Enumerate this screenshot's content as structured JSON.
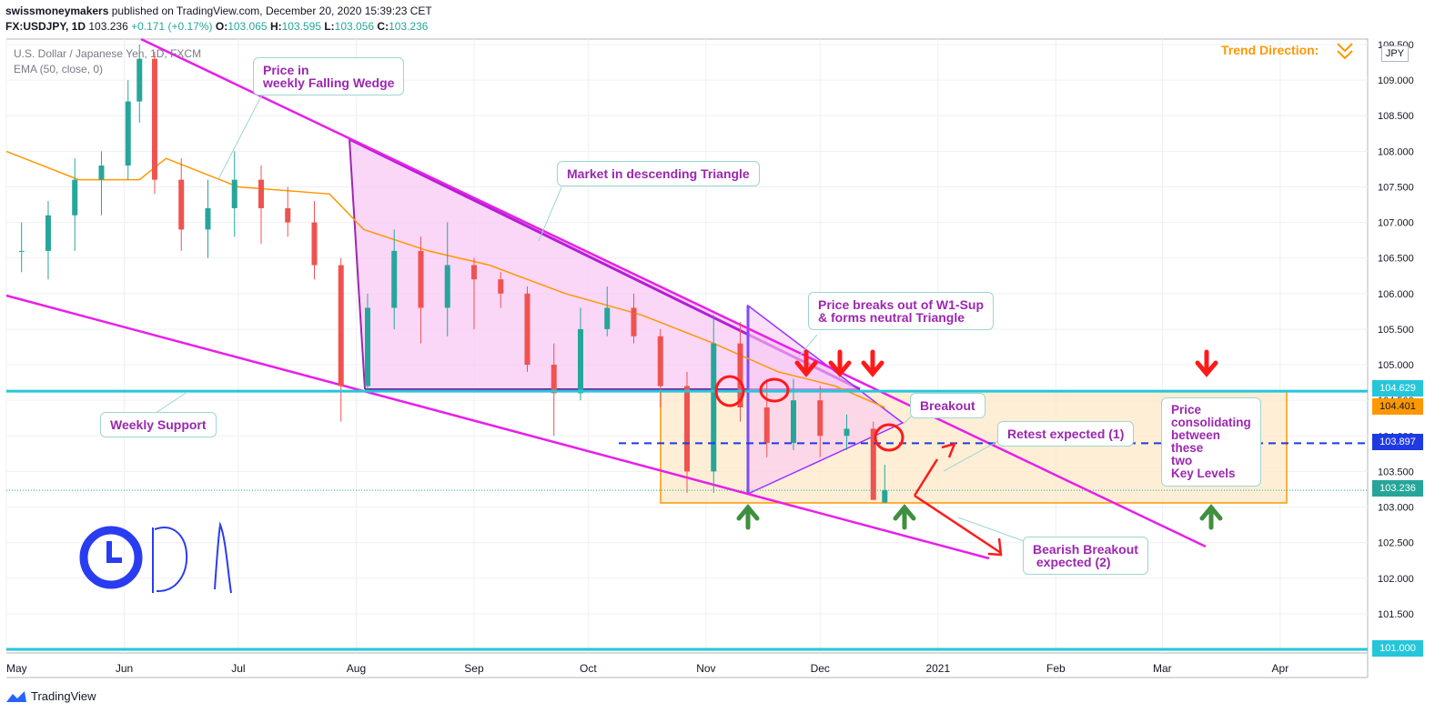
{
  "header": {
    "publisher": "swissmoneymakers",
    "published_text": "published on TradingView.com, December 20, 2020 15:39:23 CET",
    "symbol": "FX:USDJPY, 1D",
    "last": "103.236",
    "change": "+0.171 (+0.17%)",
    "o_label": "O:",
    "o": "103.065",
    "h_label": "H:",
    "h": "103.595",
    "l_label": "L:",
    "l": "103.056",
    "c_label": "C:",
    "c": "103.236"
  },
  "legend": {
    "instrument": "U.S. Dollar / Japanese Yen, 1D, FXCM",
    "indicator": "EMA (50, close, 0)"
  },
  "currency": "JPY",
  "trend_direction": "Trend Direction:",
  "annotations": {
    "falling_wedge": "Price in\nweekly Falling Wedge",
    "descending_triangle": "Market in descending Triangle",
    "breaks_out": "Price breaks out of W1-Sup\n& forms neutral Triangle",
    "breakout": "Breakout",
    "retest": "Retest expected (1)",
    "consolidating": "Price\nconsolidating\nbetween\nthese\ntwo\nKey Levels",
    "bearish": "Bearish Breakout\n expected (2)",
    "weekly_support": "Weekly Support"
  },
  "price_tags": {
    "resistance": "104.629",
    "ema": "104.401",
    "mid": "103.897",
    "last": "103.236",
    "bottom": "101.000"
  },
  "footer": {
    "brand": "TradingView"
  },
  "colors": {
    "up": "#26a69a",
    "down": "#ef5350",
    "ema": "#ff9800",
    "wedge": "#e91ee9",
    "support": "#26c6da",
    "triangle_fill": "#f8c8f4",
    "box_fill": "#fde8c8",
    "box_border": "#ff9800",
    "arrow_red": "#ff1a1a",
    "arrow_green": "#3f8f3f"
  },
  "chart_data": {
    "type": "candlestick",
    "title": "U.S. Dollar / Japanese Yen, 1D, FXCM",
    "x_tick_labels": [
      "May",
      "Jun",
      "Jul",
      "Aug",
      "Sep",
      "Oct",
      "Nov",
      "Dec",
      "2021",
      "Feb",
      "Mar",
      "Apr"
    ],
    "y_tick_labels": [
      "101.000",
      "101.500",
      "102.000",
      "102.500",
      "103.000",
      "103.500",
      "104.000",
      "104.500",
      "105.000",
      "105.500",
      "106.000",
      "106.500",
      "107.000",
      "107.500",
      "108.000",
      "108.500",
      "109.000",
      "109.500"
    ],
    "ylim": [
      101.0,
      109.6
    ],
    "x_start": "2020-05-01",
    "x_end": "2021-04-24",
    "candles": [
      {
        "date": "2020-05-05",
        "open": 106.6,
        "high": 107.0,
        "low": 106.3,
        "close": 106.6
      },
      {
        "date": "2020-05-12",
        "open": 106.6,
        "high": 107.3,
        "low": 106.2,
        "close": 107.1
      },
      {
        "date": "2020-05-19",
        "open": 107.1,
        "high": 107.9,
        "low": 106.6,
        "close": 107.6
      },
      {
        "date": "2020-05-26",
        "open": 107.6,
        "high": 108.0,
        "low": 107.1,
        "close": 107.8
      },
      {
        "date": "2020-06-02",
        "open": 107.8,
        "high": 109.0,
        "low": 107.6,
        "close": 108.7
      },
      {
        "date": "2020-06-05",
        "open": 108.7,
        "high": 109.5,
        "low": 108.4,
        "close": 109.3
      },
      {
        "date": "2020-06-09",
        "open": 109.3,
        "high": 109.4,
        "low": 107.4,
        "close": 107.6
      },
      {
        "date": "2020-06-16",
        "open": 107.6,
        "high": 107.9,
        "low": 106.6,
        "close": 106.9
      },
      {
        "date": "2020-06-23",
        "open": 106.9,
        "high": 107.6,
        "low": 106.5,
        "close": 107.2
      },
      {
        "date": "2020-06-30",
        "open": 107.2,
        "high": 108.0,
        "low": 106.8,
        "close": 107.6
      },
      {
        "date": "2020-07-07",
        "open": 107.6,
        "high": 107.8,
        "low": 106.7,
        "close": 107.2
      },
      {
        "date": "2020-07-14",
        "open": 107.2,
        "high": 107.5,
        "low": 106.8,
        "close": 107.0
      },
      {
        "date": "2020-07-21",
        "open": 107.0,
        "high": 107.3,
        "low": 106.2,
        "close": 106.4
      },
      {
        "date": "2020-07-28",
        "open": 106.4,
        "high": 106.5,
        "low": 104.2,
        "close": 104.7
      },
      {
        "date": "2020-08-04",
        "open": 104.7,
        "high": 106.0,
        "low": 104.6,
        "close": 105.8
      },
      {
        "date": "2020-08-11",
        "open": 105.8,
        "high": 106.9,
        "low": 105.5,
        "close": 106.6
      },
      {
        "date": "2020-08-18",
        "open": 106.6,
        "high": 106.8,
        "low": 105.3,
        "close": 105.8
      },
      {
        "date": "2020-08-25",
        "open": 105.8,
        "high": 107.0,
        "low": 105.4,
        "close": 106.4
      },
      {
        "date": "2020-09-01",
        "open": 106.4,
        "high": 106.5,
        "low": 105.5,
        "close": 106.2
      },
      {
        "date": "2020-09-08",
        "open": 106.2,
        "high": 106.3,
        "low": 105.8,
        "close": 106.0
      },
      {
        "date": "2020-09-15",
        "open": 106.0,
        "high": 106.1,
        "low": 104.9,
        "close": 105.0
      },
      {
        "date": "2020-09-22",
        "open": 105.0,
        "high": 105.3,
        "low": 104.0,
        "close": 104.6
      },
      {
        "date": "2020-09-29",
        "open": 104.6,
        "high": 105.8,
        "low": 104.5,
        "close": 105.5
      },
      {
        "date": "2020-10-06",
        "open": 105.5,
        "high": 106.1,
        "low": 105.4,
        "close": 105.8
      },
      {
        "date": "2020-10-13",
        "open": 105.8,
        "high": 106.0,
        "low": 105.3,
        "close": 105.4
      },
      {
        "date": "2020-10-20",
        "open": 105.4,
        "high": 105.5,
        "low": 104.4,
        "close": 104.7
      },
      {
        "date": "2020-10-27",
        "open": 104.7,
        "high": 104.9,
        "low": 103.2,
        "close": 103.5
      },
      {
        "date": "2020-11-03",
        "open": 103.5,
        "high": 105.7,
        "low": 103.2,
        "close": 105.3
      },
      {
        "date": "2020-11-10",
        "open": 105.3,
        "high": 105.6,
        "low": 104.2,
        "close": 104.4
      },
      {
        "date": "2020-11-17",
        "open": 104.4,
        "high": 104.8,
        "low": 103.7,
        "close": 103.9
      },
      {
        "date": "2020-11-24",
        "open": 103.9,
        "high": 104.8,
        "low": 103.8,
        "close": 104.5
      },
      {
        "date": "2020-12-01",
        "open": 104.5,
        "high": 104.7,
        "low": 103.7,
        "close": 104.0
      },
      {
        "date": "2020-12-08",
        "open": 104.0,
        "high": 104.3,
        "low": 103.8,
        "close": 104.1
      },
      {
        "date": "2020-12-15",
        "open": 104.1,
        "high": 104.2,
        "low": 103.1,
        "close": 103.1
      },
      {
        "date": "2020-12-18",
        "open": 103.065,
        "high": 103.595,
        "low": 103.056,
        "close": 103.236
      }
    ],
    "ema": {
      "name": "EMA (50, close, 0)",
      "points": [
        {
          "date": "2020-05-01",
          "value": 108.0
        },
        {
          "date": "2020-05-20",
          "value": 107.6
        },
        {
          "date": "2020-06-05",
          "value": 107.6
        },
        {
          "date": "2020-06-12",
          "value": 107.9
        },
        {
          "date": "2020-07-01",
          "value": 107.5
        },
        {
          "date": "2020-07-25",
          "value": 107.4
        },
        {
          "date": "2020-08-03",
          "value": 106.9
        },
        {
          "date": "2020-08-20",
          "value": 106.6
        },
        {
          "date": "2020-09-05",
          "value": 106.4
        },
        {
          "date": "2020-09-25",
          "value": 106.0
        },
        {
          "date": "2020-10-15",
          "value": 105.7
        },
        {
          "date": "2020-11-03",
          "value": 105.3
        },
        {
          "date": "2020-11-20",
          "value": 104.9
        },
        {
          "date": "2020-12-05",
          "value": 104.7
        },
        {
          "date": "2020-12-18",
          "value": 104.4
        }
      ]
    },
    "levels": {
      "weekly_support": 104.629,
      "mid_dashed": 103.897,
      "last": 103.236,
      "bottom": 101.0
    },
    "grid": true
  }
}
